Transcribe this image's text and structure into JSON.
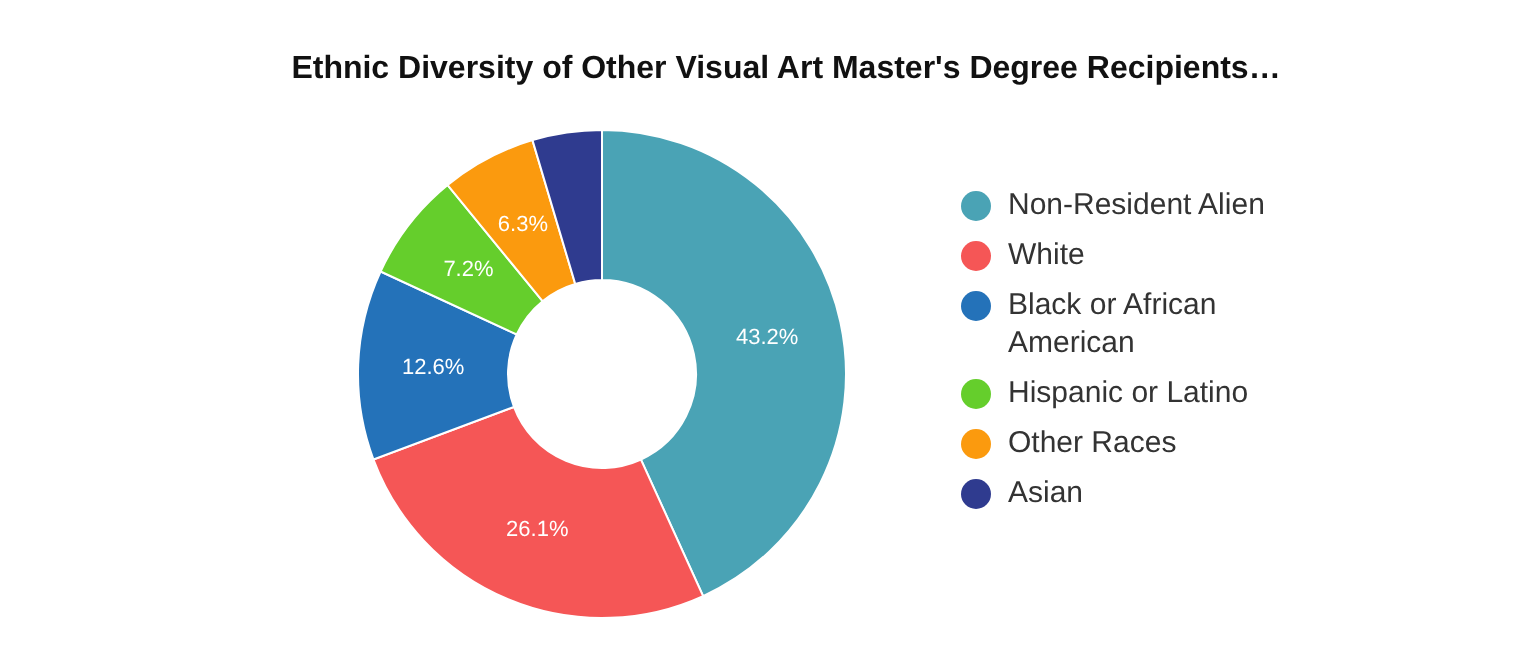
{
  "chart_data": {
    "type": "donut",
    "title": "Ethnic Diversity of Other Visual Art Master's Degree Recipients…",
    "categories": [
      "Non-Resident Alien",
      "White",
      "Black or African American",
      "Hispanic or Latino",
      "Other Races",
      "Asian"
    ],
    "values": [
      43.2,
      26.1,
      12.6,
      7.2,
      6.3,
      4.6
    ],
    "colors": [
      "#4aa3b5",
      "#f55656",
      "#2472b9",
      "#65ce2c",
      "#fb9a0e",
      "#2f3b8f"
    ],
    "value_labels": [
      "43.2%",
      "26.1%",
      "12.6%",
      "7.2%",
      "6.3%",
      null
    ],
    "legend": "right"
  }
}
